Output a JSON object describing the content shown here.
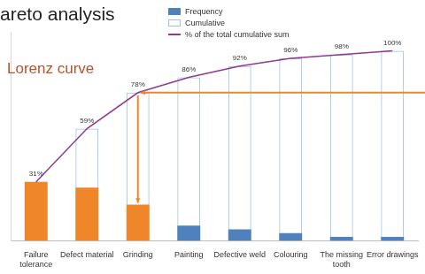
{
  "chart_data": {
    "type": "bar",
    "title": "areto analysis",
    "categories": [
      "Failure tolerance",
      "Defect material",
      "Grinding",
      "Painting",
      "Defective weld",
      "Colouring",
      "The missing tooth",
      "Error drawings"
    ],
    "series": [
      {
        "name": "Frequency",
        "type": "bar",
        "color": "#4f81bd",
        "colors": [
          "#f0862a",
          "#f0862a",
          "#f0862a",
          "#4f81bd",
          "#4f81bd",
          "#4f81bd",
          "#4f81bd",
          "#4f81bd"
        ],
        "values": [
          31,
          28,
          19,
          8,
          6,
          4,
          2,
          2
        ]
      },
      {
        "name": "Cumulative",
        "type": "bar",
        "color": "#9dc3e6",
        "values": [
          31,
          59,
          78,
          86,
          92,
          96,
          98,
          100
        ]
      },
      {
        "name": "% of the total cumulative sum",
        "type": "line",
        "color": "#8e3a8e",
        "values": [
          31,
          59,
          78,
          86,
          92,
          96,
          98,
          100
        ],
        "value_labels": [
          "31%",
          "59%",
          "78%",
          "86%",
          "92%",
          "96%",
          "98%",
          "100%"
        ],
        "data_labels": true
      }
    ],
    "ylim": [
      0,
      110
    ],
    "grid": false,
    "tick_labels": "x",
    "legend": "top",
    "annotations": [
      "Lorenz curve"
    ]
  }
}
